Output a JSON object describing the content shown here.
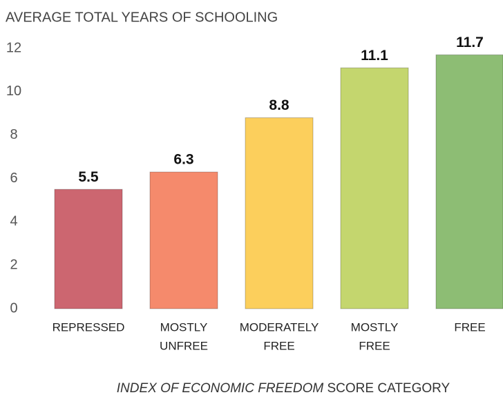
{
  "chart_data": {
    "type": "bar",
    "title": "AVERAGE TOTAL YEARS OF SCHOOLING",
    "categories": [
      [
        "REPRESSED"
      ],
      [
        "MOSTLY",
        "UNFREE"
      ],
      [
        "MODERATELY",
        "FREE"
      ],
      [
        "MOSTLY",
        "FREE"
      ],
      [
        "FREE"
      ]
    ],
    "values": [
      5.5,
      6.3,
      8.8,
      11.1,
      11.7
    ],
    "colors": [
      "#cc6670",
      "#f58a6c",
      "#fccf5c",
      "#c4d66e",
      "#8dbd74"
    ],
    "x_label": [
      "INDEX OF ECONOMIC FREEDOM",
      "SCORE CATEGORY"
    ],
    "ylim": [
      0,
      12
    ],
    "yticks": [
      0,
      2,
      4,
      6,
      8,
      10,
      12
    ],
    "grid": false
  }
}
